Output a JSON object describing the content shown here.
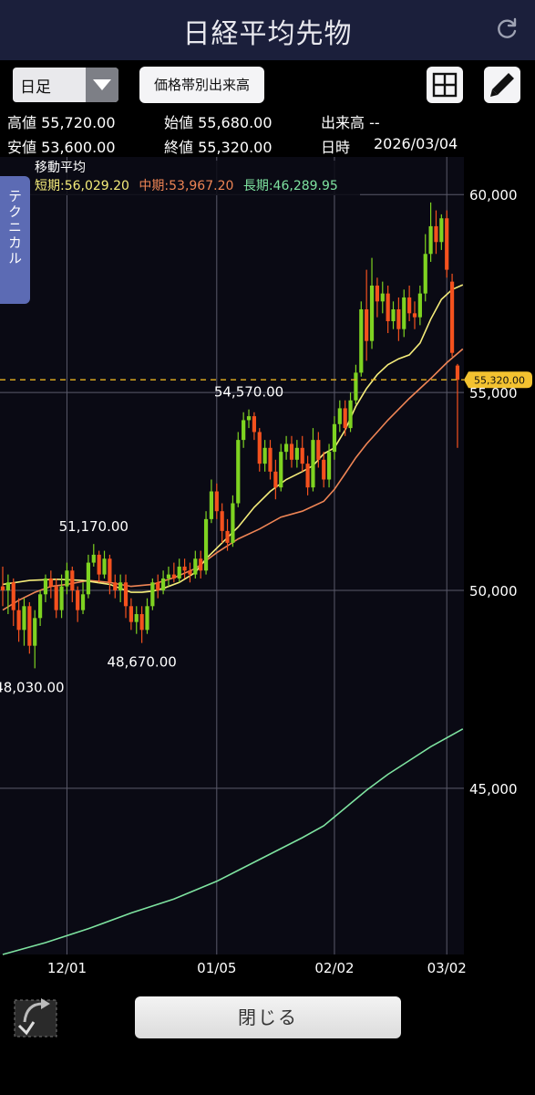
{
  "header": {
    "title": "日経平均先物",
    "refresh_icon": "refresh-icon"
  },
  "toolbar": {
    "period_value": "日足",
    "volume_button": "価格帯別出来高",
    "grid_icon": "grid-icon",
    "pencil_icon": "pencil-icon"
  },
  "info": {
    "high": "高値 55,720.00",
    "open": "始値 55,680.00",
    "volume": "出来高 --",
    "low": "安値 53,600.00",
    "close": "終値 55,320.00",
    "datetime_label": "日時",
    "datetime_value": "2026/03/04"
  },
  "side_tab": "テクニカル",
  "close_button": "閉じる",
  "colors": {
    "up": "#7ed321",
    "down": "#f4511e",
    "short_ma": "#f5ec7a",
    "mid_ma": "#ef8555",
    "long_ma": "#7ee3a0",
    "bg": "#0a0a14",
    "header": "#1b1f3b"
  },
  "chart_data": {
    "type": "candlestick",
    "legend_title": "移動平均",
    "ma_labels": {
      "short": "短期:56,029.20",
      "mid": "中期:53,967.20",
      "long": "長期:46,289.95"
    },
    "ylim": [
      40800,
      60950
    ],
    "y_ticks": [
      "60,000",
      "55,000",
      "50,000",
      "45,000"
    ],
    "y_tick_values": [
      60000,
      55000,
      50000,
      45000
    ],
    "x_ticks": [
      {
        "label": "12/01",
        "index": 12
      },
      {
        "label": "01/05",
        "index": 40
      },
      {
        "label": "02/02",
        "index": 62
      },
      {
        "label": "03/02",
        "index": 83
      }
    ],
    "current_price": 55320,
    "current_price_label": "55,320.00",
    "annotations": [
      {
        "text": "54,570.00",
        "index": 46,
        "value": 54570,
        "pos": "above"
      },
      {
        "text": "51,170.00",
        "index": 17,
        "value": 51170,
        "pos": "above"
      },
      {
        "text": "48,670.00",
        "index": 26,
        "value": 48670,
        "pos": "below"
      },
      {
        "text": "48,030.00",
        "index": 5,
        "value": 48030,
        "pos": "below"
      }
    ],
    "candles": [
      [
        50100,
        50000,
        50600,
        49600
      ],
      [
        50000,
        50200,
        50400,
        49400
      ],
      [
        50200,
        49500,
        50300,
        49100
      ],
      [
        49500,
        49000,
        49800,
        48700
      ],
      [
        49000,
        49600,
        49800,
        48600
      ],
      [
        49600,
        48600,
        49700,
        48400
      ],
      [
        48600,
        49300,
        49500,
        48030
      ],
      [
        49300,
        49900,
        50000,
        49100
      ],
      [
        49900,
        50300,
        50400,
        49700
      ],
      [
        50300,
        50100,
        50500,
        49800
      ],
      [
        50100,
        49500,
        50300,
        49300
      ],
      [
        49500,
        50100,
        50400,
        49300
      ],
      [
        50100,
        50500,
        50700,
        49900
      ],
      [
        50500,
        50000,
        50600,
        49700
      ],
      [
        50000,
        49500,
        50100,
        49200
      ],
      [
        49500,
        49900,
        50200,
        49400
      ],
      [
        49900,
        50700,
        50900,
        49800
      ],
      [
        50700,
        50900,
        51170,
        50600
      ],
      [
        50900,
        50400,
        51000,
        50200
      ],
      [
        50400,
        50800,
        51000,
        50300
      ],
      [
        50800,
        50200,
        50900,
        49900
      ],
      [
        50200,
        50000,
        50400,
        49800
      ],
      [
        50000,
        50200,
        50400,
        49700
      ],
      [
        50200,
        49600,
        50400,
        49300
      ],
      [
        49600,
        49200,
        49800,
        49000
      ],
      [
        49200,
        49400,
        49600,
        48900
      ],
      [
        49400,
        49000,
        49600,
        48670
      ],
      [
        49000,
        49600,
        49800,
        48900
      ],
      [
        49600,
        50200,
        50300,
        49500
      ],
      [
        50200,
        50000,
        50400,
        49800
      ],
      [
        50000,
        50300,
        50500,
        49900
      ],
      [
        50300,
        50400,
        50600,
        50100
      ],
      [
        50400,
        50300,
        50700,
        50200
      ],
      [
        50300,
        50600,
        50800,
        50200
      ],
      [
        50600,
        50500,
        50800,
        50300
      ],
      [
        50500,
        50400,
        50700,
        50200
      ],
      [
        50400,
        50800,
        51000,
        50300
      ],
      [
        50800,
        50500,
        51000,
        50300
      ],
      [
        50500,
        51800,
        52000,
        50400
      ],
      [
        51800,
        52500,
        52800,
        51700
      ],
      [
        52500,
        52000,
        52700,
        51800
      ],
      [
        52000,
        51500,
        52200,
        51200
      ],
      [
        51500,
        51200,
        51800,
        51000
      ],
      [
        51200,
        52200,
        52400,
        51100
      ],
      [
        52200,
        53800,
        54000,
        52100
      ],
      [
        53800,
        54300,
        54500,
        53600
      ],
      [
        54300,
        54400,
        54570,
        54100
      ],
      [
        54400,
        54000,
        54500,
        53800
      ],
      [
        54000,
        53200,
        54100,
        53000
      ],
      [
        53200,
        53600,
        53800,
        53000
      ],
      [
        53600,
        53000,
        53800,
        52800
      ],
      [
        53000,
        52600,
        53300,
        52300
      ],
      [
        52600,
        53500,
        53700,
        52500
      ],
      [
        53500,
        53700,
        53900,
        53300
      ],
      [
        53700,
        53300,
        53900,
        53100
      ],
      [
        53300,
        53600,
        53800,
        53100
      ],
      [
        53600,
        53200,
        53900,
        53000
      ],
      [
        53200,
        52600,
        53400,
        52400
      ],
      [
        52600,
        53800,
        54100,
        52500
      ],
      [
        53800,
        53300,
        54000,
        53100
      ],
      [
        53300,
        52800,
        53500,
        52600
      ],
      [
        52800,
        53500,
        53700,
        52600
      ],
      [
        53500,
        54200,
        54400,
        53300
      ],
      [
        54200,
        54600,
        54800,
        54000
      ],
      [
        54600,
        54100,
        54800,
        53900
      ],
      [
        54100,
        54800,
        55000,
        54000
      ],
      [
        54800,
        55500,
        55700,
        54700
      ],
      [
        55500,
        57100,
        57300,
        55400
      ],
      [
        57100,
        56300,
        58100,
        55800
      ],
      [
        56300,
        57700,
        58400,
        56100
      ],
      [
        57700,
        57300,
        57900,
        56900
      ],
      [
        57300,
        57500,
        57800,
        57000
      ],
      [
        57500,
        56800,
        57700,
        56500
      ],
      [
        56800,
        57100,
        57300,
        56600
      ],
      [
        57100,
        56600,
        57400,
        56300
      ],
      [
        56600,
        57400,
        57600,
        56400
      ],
      [
        57400,
        57000,
        57700,
        56800
      ],
      [
        57000,
        56900,
        57300,
        56600
      ],
      [
        56900,
        57500,
        57700,
        56700
      ],
      [
        57500,
        58500,
        59000,
        57300
      ],
      [
        58500,
        59200,
        59800,
        58300
      ],
      [
        59200,
        58800,
        59600,
        58500
      ],
      [
        58800,
        59400,
        59500,
        58600
      ],
      [
        59400,
        58100,
        59600,
        57900
      ],
      [
        57800,
        56000,
        58000,
        55900
      ],
      [
        55680,
        55320,
        55720,
        53600
      ]
    ],
    "ma_short": [
      [
        0,
        50150
      ],
      [
        5,
        50250
      ],
      [
        10,
        50280
      ],
      [
        15,
        50250
      ],
      [
        20,
        50150
      ],
      [
        22,
        50050
      ],
      [
        24,
        49950
      ],
      [
        26,
        49950
      ],
      [
        28,
        49980
      ],
      [
        30,
        50050
      ],
      [
        33,
        50200
      ],
      [
        36,
        50450
      ],
      [
        38,
        50800
      ],
      [
        41,
        51200
      ],
      [
        44,
        51600
      ],
      [
        47,
        52100
      ],
      [
        50,
        52500
      ],
      [
        53,
        52800
      ],
      [
        56,
        53000
      ],
      [
        58,
        53150
      ],
      [
        60,
        53450
      ],
      [
        62,
        53600
      ],
      [
        64,
        54050
      ],
      [
        66,
        54650
      ],
      [
        68,
        55100
      ],
      [
        70,
        55450
      ],
      [
        72,
        55700
      ],
      [
        74,
        55850
      ],
      [
        76,
        55950
      ],
      [
        78,
        56250
      ],
      [
        80,
        56850
      ],
      [
        82,
        57350
      ],
      [
        84,
        57600
      ],
      [
        86,
        57720
      ]
    ],
    "ma_mid": [
      [
        0,
        49500
      ],
      [
        3,
        49750
      ],
      [
        6,
        49950
      ],
      [
        9,
        50100
      ],
      [
        12,
        50150
      ],
      [
        16,
        50250
      ],
      [
        20,
        50200
      ],
      [
        24,
        50100
      ],
      [
        28,
        50150
      ],
      [
        32,
        50320
      ],
      [
        36,
        50550
      ],
      [
        40,
        50950
      ],
      [
        44,
        51300
      ],
      [
        48,
        51550
      ],
      [
        52,
        51850
      ],
      [
        56,
        52000
      ],
      [
        60,
        52250
      ],
      [
        62,
        52550
      ],
      [
        64,
        52950
      ],
      [
        66,
        53350
      ],
      [
        68,
        53700
      ],
      [
        70,
        54000
      ],
      [
        72,
        54300
      ],
      [
        76,
        54850
      ],
      [
        80,
        55350
      ],
      [
        83,
        55750
      ],
      [
        86,
        56100
      ]
    ],
    "ma_long": [
      [
        0,
        40800
      ],
      [
        8,
        41100
      ],
      [
        16,
        41450
      ],
      [
        24,
        41850
      ],
      [
        32,
        42200
      ],
      [
        40,
        42650
      ],
      [
        48,
        43200
      ],
      [
        56,
        43750
      ],
      [
        60,
        44050
      ],
      [
        64,
        44500
      ],
      [
        68,
        44950
      ],
      [
        72,
        45350
      ],
      [
        76,
        45700
      ],
      [
        80,
        46050
      ],
      [
        84,
        46350
      ],
      [
        86,
        46500
      ]
    ]
  }
}
